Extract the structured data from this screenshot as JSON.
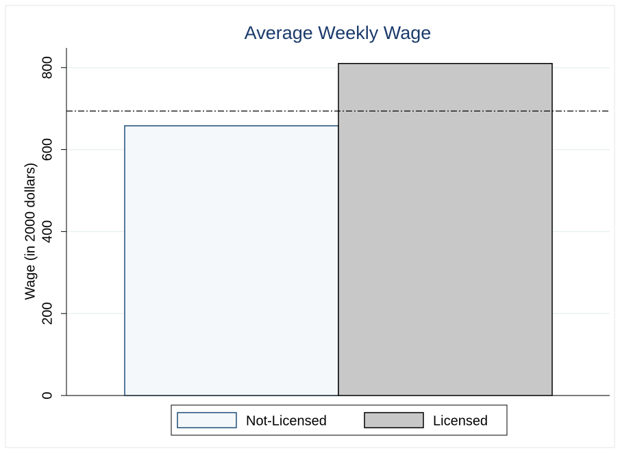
{
  "chart_data": {
    "type": "bar",
    "title": "Average Weekly Wage",
    "y_label": "Wage (in 2000 dollars)",
    "series": [
      {
        "name": "Not-Licensed",
        "color": "#f4f8fa",
        "edge_color": "#1f4e79",
        "values": [
          658
        ]
      },
      {
        "name": "Licensed",
        "color": "#c8c8c8",
        "edge_color": "#000000",
        "values": [
          810
        ]
      }
    ],
    "reference_line": 694,
    "ylim": [
      0,
      848
    ],
    "yticks": [
      0,
      200,
      400,
      600,
      800
    ],
    "grid": true,
    "legend": "bottom"
  }
}
